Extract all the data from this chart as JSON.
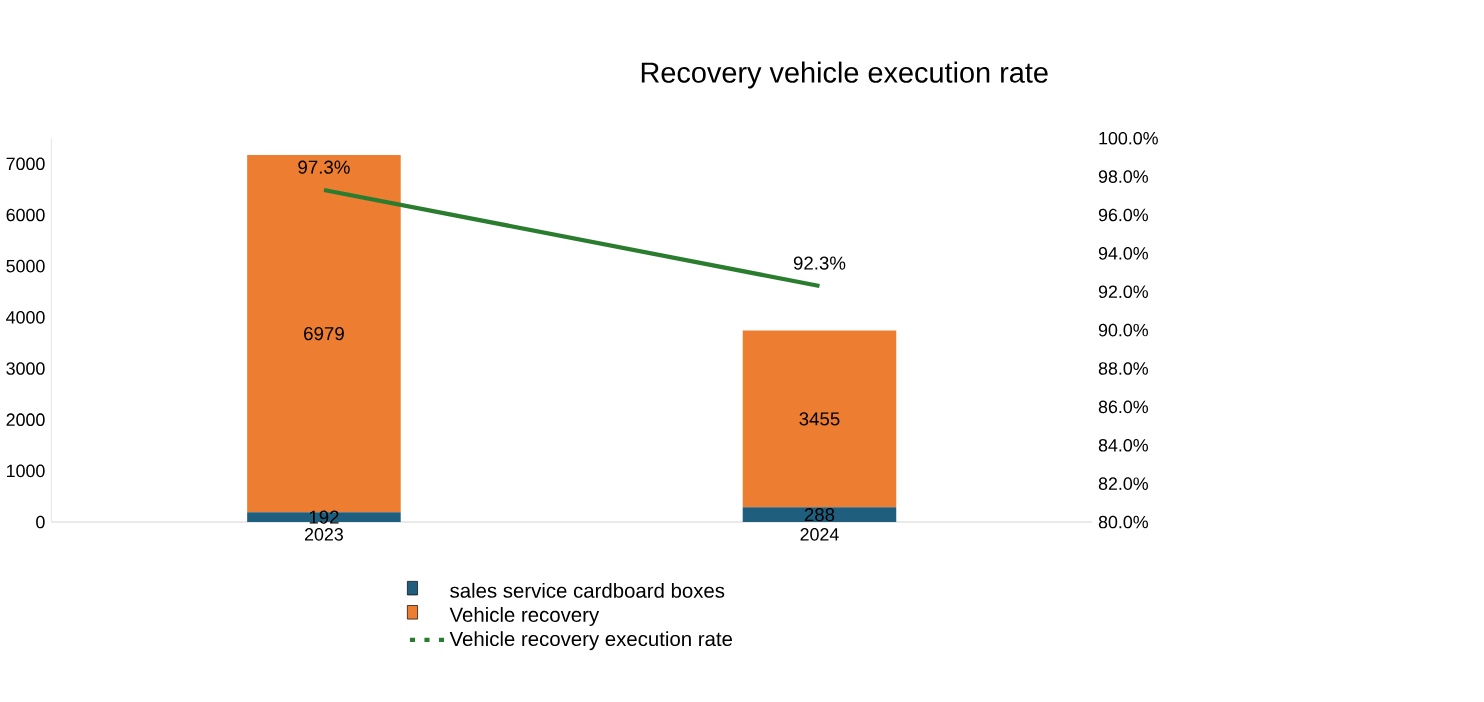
{
  "chart_data": {
    "type": "bar",
    "title": "Recovery vehicle execution rate",
    "categories": [
      "2023",
      "2024"
    ],
    "stacked": true,
    "legend": "bottom",
    "ylim": [
      0,
      7500
    ],
    "yticks": [
      0,
      1000,
      2000,
      3000,
      4000,
      5000,
      6000,
      7000
    ],
    "y2lim": [
      80,
      100
    ],
    "y2ticks": [
      {
        "value": 80,
        "label": "80.0%"
      },
      {
        "value": 82,
        "label": "82.0%"
      },
      {
        "value": 84,
        "label": "84.0%"
      },
      {
        "value": 86,
        "label": "86.0%"
      },
      {
        "value": 88,
        "label": "88.0%"
      },
      {
        "value": 90,
        "label": "90.0%"
      },
      {
        "value": 92,
        "label": "92.0%"
      },
      {
        "value": 94,
        "label": "94.0%"
      },
      {
        "value": 96,
        "label": "96.0%"
      },
      {
        "value": 98,
        "label": "98.0%"
      },
      {
        "value": 100,
        "label": "100.0%"
      }
    ],
    "series": [
      {
        "name": "sales service cardboard boxes",
        "color": "#1f5f7d",
        "values": [
          192,
          288
        ],
        "value_labels": [
          "192",
          "288"
        ]
      },
      {
        "name": "Vehicle recovery",
        "color": "#ed7d31",
        "values": [
          6979,
          3455
        ],
        "value_labels": [
          "6979",
          "3455"
        ]
      },
      {
        "name": "Vehicle recovery execution rate",
        "type": "line",
        "axis": "y2",
        "color": "#2a7d2e",
        "values": [
          97.3,
          92.3
        ],
        "value_labels": [
          "97.3%",
          "92.3%"
        ]
      }
    ]
  }
}
